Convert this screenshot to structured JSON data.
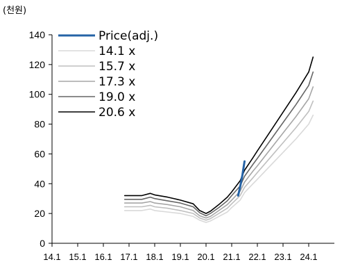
{
  "chart_data": {
    "type": "line",
    "unit_label": "(천원)",
    "x_ticks": [
      "14.1",
      "15.1",
      "16.1",
      "17.1",
      "18.1",
      "19.1",
      "20.1",
      "21.1",
      "22.1",
      "23.1",
      "24.1"
    ],
    "y_ticks": [
      "0",
      "20",
      "40",
      "60",
      "80",
      "100",
      "120",
      "140"
    ],
    "xlim": [
      2014.0,
      2025.0
    ],
    "ylim": [
      0,
      140
    ],
    "grid": false,
    "legend_position": "top-left",
    "series": [
      {
        "name": "Price(adj.)",
        "color": "#2563a6",
        "stroke_width": 3,
        "points": [
          [
            2021.25,
            32
          ],
          [
            2021.33,
            38
          ],
          [
            2021.42,
            46
          ],
          [
            2021.5,
            55
          ]
        ]
      },
      {
        "name": "14.1 x",
        "color": "#d9d9d9",
        "stroke_width": 1.6,
        "points": [
          [
            2016.83,
            22
          ],
          [
            2017.5,
            22
          ],
          [
            2017.83,
            23
          ],
          [
            2018.0,
            22
          ],
          [
            2018.5,
            21
          ],
          [
            2019.0,
            20
          ],
          [
            2019.5,
            18
          ],
          [
            2019.75,
            15.5
          ],
          [
            2020.0,
            14
          ],
          [
            2020.17,
            15
          ],
          [
            2020.5,
            18
          ],
          [
            2020.83,
            21
          ],
          [
            2021.0,
            24
          ],
          [
            2021.33,
            29
          ],
          [
            2021.5,
            34
          ],
          [
            2021.83,
            40
          ],
          [
            2022.0,
            43
          ],
          [
            2022.5,
            52
          ],
          [
            2023.0,
            61
          ],
          [
            2023.5,
            70
          ],
          [
            2024.0,
            80
          ],
          [
            2024.17,
            86
          ]
        ]
      },
      {
        "name": "15.7 x",
        "color": "#bfbfbf",
        "stroke_width": 1.6,
        "points": [
          [
            2016.83,
            24.5
          ],
          [
            2017.5,
            24.5
          ],
          [
            2017.83,
            25.5
          ],
          [
            2018.0,
            24.5
          ],
          [
            2018.5,
            23.5
          ],
          [
            2019.0,
            22
          ],
          [
            2019.5,
            20
          ],
          [
            2019.75,
            17
          ],
          [
            2020.0,
            15.5
          ],
          [
            2020.17,
            16.5
          ],
          [
            2020.5,
            20
          ],
          [
            2020.83,
            23.5
          ],
          [
            2021.0,
            26.5
          ],
          [
            2021.33,
            32
          ],
          [
            2021.5,
            37.5
          ],
          [
            2021.83,
            44
          ],
          [
            2022.0,
            47.5
          ],
          [
            2022.5,
            57.5
          ],
          [
            2023.0,
            67.5
          ],
          [
            2023.5,
            77.5
          ],
          [
            2024.0,
            88.5
          ],
          [
            2024.17,
            95.5
          ]
        ]
      },
      {
        "name": "17.3 x",
        "color": "#a6a6a6",
        "stroke_width": 1.6,
        "points": [
          [
            2016.83,
            27
          ],
          [
            2017.5,
            27
          ],
          [
            2017.83,
            28
          ],
          [
            2018.0,
            27
          ],
          [
            2018.5,
            26
          ],
          [
            2019.0,
            24.5
          ],
          [
            2019.5,
            22
          ],
          [
            2019.75,
            18.5
          ],
          [
            2020.0,
            17
          ],
          [
            2020.17,
            18
          ],
          [
            2020.5,
            22
          ],
          [
            2020.83,
            26
          ],
          [
            2021.0,
            29
          ],
          [
            2021.33,
            35
          ],
          [
            2021.5,
            41
          ],
          [
            2021.83,
            48.5
          ],
          [
            2022.0,
            52
          ],
          [
            2022.5,
            63
          ],
          [
            2023.0,
            74
          ],
          [
            2023.5,
            85
          ],
          [
            2024.0,
            97
          ],
          [
            2024.17,
            105
          ]
        ]
      },
      {
        "name": "19.0 x",
        "color": "#666666",
        "stroke_width": 1.6,
        "points": [
          [
            2016.83,
            29.5
          ],
          [
            2017.5,
            29.5
          ],
          [
            2017.83,
            31
          ],
          [
            2018.0,
            30
          ],
          [
            2018.5,
            28.5
          ],
          [
            2019.0,
            27
          ],
          [
            2019.5,
            24.5
          ],
          [
            2019.75,
            20.5
          ],
          [
            2020.0,
            18.5
          ],
          [
            2020.17,
            20
          ],
          [
            2020.5,
            24
          ],
          [
            2020.83,
            28.5
          ],
          [
            2021.0,
            32
          ],
          [
            2021.33,
            38.5
          ],
          [
            2021.5,
            45
          ],
          [
            2021.83,
            53
          ],
          [
            2022.0,
            57
          ],
          [
            2022.5,
            69
          ],
          [
            2023.0,
            81
          ],
          [
            2023.5,
            93
          ],
          [
            2024.0,
            106
          ],
          [
            2024.17,
            115
          ]
        ]
      },
      {
        "name": "20.6 x",
        "color": "#000000",
        "stroke_width": 1.6,
        "points": [
          [
            2016.83,
            32
          ],
          [
            2017.5,
            32
          ],
          [
            2017.83,
            33.5
          ],
          [
            2018.0,
            32.5
          ],
          [
            2018.5,
            31
          ],
          [
            2019.0,
            29
          ],
          [
            2019.5,
            26.5
          ],
          [
            2019.75,
            22
          ],
          [
            2020.0,
            20
          ],
          [
            2020.17,
            21.5
          ],
          [
            2020.5,
            26
          ],
          [
            2020.83,
            31
          ],
          [
            2021.0,
            34.5
          ],
          [
            2021.33,
            42
          ],
          [
            2021.5,
            49
          ],
          [
            2021.83,
            57.5
          ],
          [
            2022.0,
            62
          ],
          [
            2022.5,
            75
          ],
          [
            2023.0,
            88
          ],
          [
            2023.5,
            101
          ],
          [
            2024.0,
            115
          ],
          [
            2024.17,
            125
          ]
        ]
      }
    ]
  }
}
